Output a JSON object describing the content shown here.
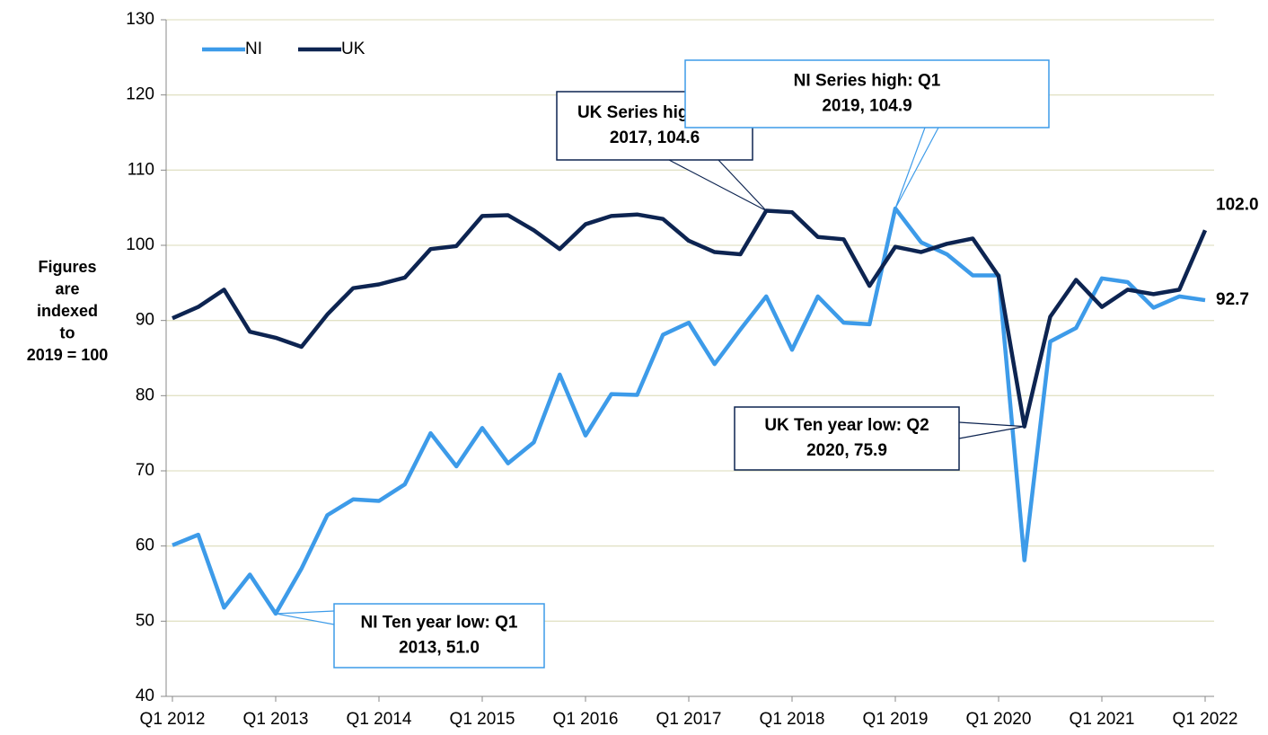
{
  "chart_data": {
    "type": "line",
    "y_label": [
      "Figures",
      "are",
      "indexed",
      "to",
      "2019 = 100"
    ],
    "categories": [
      "Q1 2012",
      null,
      null,
      null,
      "Q1 2013",
      null,
      null,
      null,
      "Q1 2014",
      null,
      null,
      null,
      "Q1 2015",
      null,
      null,
      null,
      "Q1 2016",
      null,
      null,
      null,
      "Q1 2017",
      null,
      null,
      null,
      "Q1 2018",
      null,
      null,
      null,
      "Q1 2019",
      null,
      null,
      null,
      "Q1 2020",
      null,
      null,
      null,
      "Q1 2021",
      null,
      null,
      null,
      "Q1 2022"
    ],
    "series": [
      {
        "name": "NI",
        "color": "#3d9be9",
        "values": [
          60.1,
          61.5,
          51.8,
          56.2,
          51.0,
          57.0,
          64.1,
          66.2,
          66.0,
          68.2,
          75.0,
          70.6,
          75.7,
          71.0,
          73.8,
          82.8,
          74.7,
          80.2,
          80.1,
          88.1,
          89.7,
          84.2,
          88.8,
          93.2,
          86.1,
          93.2,
          89.7,
          89.5,
          104.9,
          100.4,
          98.8,
          96.0,
          96.0,
          58.1,
          87.2,
          89.0,
          95.6,
          95.1,
          91.7,
          93.2,
          92.7
        ],
        "value_labels": [
          null,
          null,
          null,
          null,
          null,
          null,
          null,
          null,
          null,
          null,
          null,
          null,
          null,
          null,
          null,
          null,
          null,
          null,
          null,
          null,
          null,
          null,
          null,
          null,
          null,
          null,
          null,
          null,
          null,
          null,
          null,
          null,
          null,
          null,
          null,
          null,
          null,
          null,
          null,
          null,
          "92.7"
        ]
      },
      {
        "name": "UK",
        "color": "#0d2451",
        "values": [
          90.3,
          91.8,
          94.1,
          88.5,
          87.7,
          86.5,
          90.8,
          94.3,
          94.8,
          95.7,
          99.5,
          99.9,
          103.9,
          104.0,
          102.0,
          99.5,
          102.8,
          103.9,
          104.1,
          103.5,
          100.6,
          99.1,
          98.8,
          104.6,
          104.4,
          101.1,
          100.8,
          94.6,
          99.8,
          99.1,
          100.2,
          100.9,
          95.9,
          75.9,
          90.5,
          95.4,
          91.8,
          94.1,
          93.5,
          94.1,
          102.0
        ],
        "value_labels": [
          null,
          null,
          null,
          null,
          null,
          null,
          null,
          null,
          null,
          null,
          null,
          null,
          null,
          null,
          null,
          null,
          null,
          null,
          null,
          null,
          null,
          null,
          null,
          null,
          null,
          null,
          null,
          null,
          null,
          null,
          null,
          null,
          null,
          null,
          null,
          null,
          null,
          null,
          null,
          null,
          "102.0"
        ]
      }
    ],
    "annotations": [
      {
        "lines": [
          "UK Series high: Q4",
          "2017, 104.6"
        ]
      },
      {
        "lines": [
          "NI Series high: Q1",
          "2019, 104.9"
        ]
      },
      {
        "lines": [
          "UK Ten year low: Q2",
          "2020, 75.9"
        ]
      },
      {
        "lines": [
          "NI Ten year low: Q1",
          "2013, 51.0"
        ]
      }
    ],
    "ylim": [
      40,
      130
    ],
    "yticks": [
      40,
      50,
      60,
      70,
      80,
      90,
      100,
      110,
      120,
      130
    ],
    "grid": true,
    "legend": "top-left"
  }
}
